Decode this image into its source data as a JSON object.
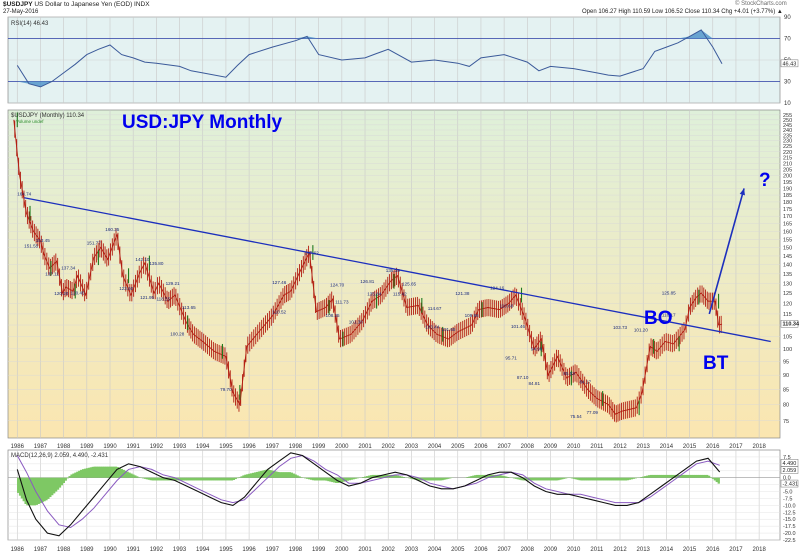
{
  "header": {
    "symbol": "$USDJPY",
    "description": "US Dollar to Japanese Yen (EOD) INDX",
    "date": "27-May-2016",
    "ohlc": "Open 106.27  High 110.59  Low 106.52  Close 110.34  Chg +4.01 (+3.77%) ▲",
    "credit": "© StockCharts.com"
  },
  "colors": {
    "price_bg_top": "#dff0da",
    "price_bg_bottom": "#fbe6b0",
    "rsi_bg": "#e4f2f2",
    "bar": "#b21e12",
    "trendline": "#1c2fbd",
    "annotation": "#0000ee"
  },
  "chart_data": [
    {
      "type": "line",
      "name": "RSI panel",
      "legend": "RSI(14) 46.43",
      "ylim": [
        10,
        90
      ],
      "y_ticks": [
        10,
        30,
        50,
        70,
        90
      ],
      "reference_lines": [
        30,
        70
      ],
      "last_value_label": "46.43",
      "x": [
        1986,
        1986.5,
        1987,
        1987.5,
        1988,
        1988.5,
        1989,
        1989.5,
        1990,
        1990.5,
        1991,
        1991.5,
        1992,
        1993,
        1993.5,
        1994,
        1995,
        1995.5,
        1996,
        1997,
        1998,
        1998.5,
        1999,
        2000,
        2001,
        2001.5,
        2002,
        2003,
        2004,
        2005,
        2005.5,
        2006,
        2007,
        2008,
        2008.5,
        2009,
        2010,
        2011,
        2011.5,
        2012,
        2013,
        2013.5,
        2014,
        2014.5,
        2015,
        2015.5,
        2016,
        2016.4
      ],
      "values": [
        45,
        28,
        25,
        30,
        38,
        46,
        55,
        60,
        64,
        55,
        52,
        48,
        47,
        44,
        40,
        38,
        34,
        45,
        55,
        62,
        68,
        72,
        55,
        50,
        52,
        56,
        60,
        48,
        50,
        47,
        44,
        52,
        55,
        48,
        40,
        44,
        42,
        38,
        36,
        35,
        42,
        58,
        62,
        66,
        72,
        78,
        62,
        46.43
      ]
    },
    {
      "type": "line",
      "name": "Price panel",
      "title": "USD:JPY Monthly",
      "legend": "$USDJPY (Monthly) 110.34",
      "legend_sub": "Volume undef",
      "scale": "log",
      "ylim": [
        70,
        260
      ],
      "y_ticks": [
        75,
        80,
        85,
        90,
        95,
        100,
        105,
        110,
        115,
        120,
        125,
        130,
        135,
        140,
        145,
        150,
        155,
        160,
        165,
        170,
        175,
        180,
        185,
        190,
        195,
        200,
        205,
        210,
        215,
        220,
        225,
        230,
        235,
        240,
        245,
        250,
        255
      ],
      "last_value_label": "110.34",
      "x_ticks": [
        "1986",
        "1987",
        "1988",
        "1989",
        "1990",
        "1991",
        "1992",
        "1993",
        "1994",
        "1995",
        "1996",
        "1997",
        "1998",
        "1999",
        "2000",
        "2001",
        "2002",
        "2003",
        "2004",
        "2005",
        "2006",
        "2007",
        "2008",
        "2009",
        "2010",
        "2011",
        "2012",
        "2013",
        "2014",
        "2015",
        "2016",
        "2017",
        "2018"
      ],
      "x": [
        1985.85,
        1986.1,
        1986.4,
        1986.7,
        1987.0,
        1987.15,
        1987.4,
        1987.7,
        1987.95,
        1988.1,
        1988.4,
        1988.6,
        1988.95,
        1989.3,
        1989.6,
        1989.9,
        1990.3,
        1990.55,
        1990.9,
        1991.3,
        1991.5,
        1991.9,
        1992.1,
        1992.5,
        1992.8,
        1993.3,
        1993.6,
        1994.0,
        1994.5,
        1995.0,
        1995.3,
        1995.6,
        1995.9,
        1996.5,
        1997.0,
        1997.5,
        1997.8,
        1998.3,
        1998.6,
        1998.9,
        1999.3,
        1999.6,
        1999.9,
        2000.4,
        2000.9,
        2001.3,
        2001.7,
        2002.1,
        2002.4,
        2002.8,
        2003.3,
        2003.7,
        2004.1,
        2004.6,
        2005.0,
        2005.6,
        2005.9,
        2006.3,
        2006.8,
        2007.2,
        2007.5,
        2007.9,
        2008.3,
        2008.6,
        2008.9,
        2009.3,
        2009.7,
        2010.1,
        2010.6,
        2011.0,
        2011.5,
        2011.8,
        2012.1,
        2012.7,
        2012.95,
        2013.3,
        2013.6,
        2013.95,
        2014.3,
        2014.8,
        2015.0,
        2015.3,
        2015.5,
        2015.8,
        2016.1,
        2016.25,
        2016.4
      ],
      "values": [
        250,
        200,
        172,
        160,
        154,
        146,
        138,
        142,
        125,
        128,
        126,
        134,
        124,
        144,
        150,
        143,
        158,
        134,
        124,
        136,
        141,
        125,
        130,
        121,
        124,
        111,
        106,
        103,
        99,
        97,
        84,
        80,
        101,
        108,
        114,
        124,
        126,
        139,
        147,
        116,
        118,
        122,
        104,
        106,
        112,
        121,
        124,
        131,
        134,
        118,
        119,
        110,
        106,
        104,
        107,
        110,
        117,
        118,
        117,
        120,
        124,
        113,
        100,
        104,
        90,
        97,
        89,
        91,
        85,
        82,
        80,
        77,
        78,
        79,
        84,
        101,
        99,
        103,
        102,
        108,
        118,
        123,
        125,
        121,
        121,
        110,
        110.34
      ],
      "bars": [
        [
          1985.85,
          1986.15
        ],
        [
          1986.25,
          1986.85
        ],
        [
          1987.1,
          1987.8
        ],
        [
          1988.2,
          1988.8
        ],
        [
          1989.0,
          1990.0
        ],
        [
          1990.5,
          1991.1
        ],
        [
          1991.5,
          1991.9
        ],
        [
          1993.2,
          1993.5
        ],
        [
          1994.6,
          1995.1
        ],
        [
          1995.5,
          1995.7
        ],
        [
          1998.6,
          1998.9
        ],
        [
          1999.3,
          1999.6
        ],
        [
          1999.9,
          2000.2
        ],
        [
          2001.3,
          2001.7
        ],
        [
          2002.1,
          2002.4
        ],
        [
          2003.3,
          2003.6
        ],
        [
          2004.1,
          2004.6
        ],
        [
          2005.9,
          2006.2
        ],
        [
          2007.5,
          2008.0
        ],
        [
          2008.3,
          2008.9
        ],
        [
          2009.7,
          2010.1
        ],
        [
          2011.0,
          2011.5
        ],
        [
          2012.7,
          2012.95
        ],
        [
          2013.3,
          2013.6
        ],
        [
          2014.3,
          2014.8
        ],
        [
          2015.3,
          2015.5
        ],
        [
          2016.1,
          2016.4
        ]
      ],
      "point_labels": [
        {
          "x": 1986.3,
          "y": 184.74,
          "text": "164.74"
        },
        {
          "x": 1987.1,
          "y": 153.45,
          "text": "153.45"
        },
        {
          "x": 1986.6,
          "y": 150.1,
          "text": "151.55"
        },
        {
          "x": 1988.2,
          "y": 137.34,
          "text": "137.34"
        },
        {
          "x": 1987.5,
          "y": 134.2,
          "text": "137.11"
        },
        {
          "x": 1987.9,
          "y": 124.1,
          "text": "120.20"
        },
        {
          "x": 1988.6,
          "y": 124.3,
          "text": "120.45"
        },
        {
          "x": 1989.3,
          "y": 151.77,
          "text": "151.77"
        },
        {
          "x": 1990.1,
          "y": 160.35,
          "text": "160.35"
        },
        {
          "x": 1991.4,
          "y": 142.1,
          "text": "142.10"
        },
        {
          "x": 1990.7,
          "y": 126.5,
          "text": "123.60"
        },
        {
          "x": 1992.0,
          "y": 139.8,
          "text": "135.80"
        },
        {
          "x": 1991.6,
          "y": 121.95,
          "text": "121.95"
        },
        {
          "x": 1992.7,
          "y": 129.21,
          "text": "129.21"
        },
        {
          "x": 1992.3,
          "y": 121.3,
          "text": "118.55"
        },
        {
          "x": 1993.4,
          "y": 117.3,
          "text": "113.65"
        },
        {
          "x": 1992.9,
          "y": 105.5,
          "text": "100.28"
        },
        {
          "x": 1995.0,
          "y": 84.5,
          "text": "79.70"
        },
        {
          "x": 1997.3,
          "y": 129.5,
          "text": "127.46"
        },
        {
          "x": 1997.3,
          "y": 115.1,
          "text": "110.52"
        },
        {
          "x": 1998.7,
          "y": 145.9,
          "text": "147.62"
        },
        {
          "x": 1999.8,
          "y": 128.3,
          "text": "124.70"
        },
        {
          "x": 1999.6,
          "y": 113.5,
          "text": "108.25"
        },
        {
          "x": 2000.0,
          "y": 119.8,
          "text": "111.73"
        },
        {
          "x": 2000.6,
          "y": 110.6,
          "text": "101.38"
        },
        {
          "x": 2001.1,
          "y": 130.1,
          "text": "126.81"
        },
        {
          "x": 2001.4,
          "y": 123.7,
          "text": "135.84"
        },
        {
          "x": 2002.2,
          "y": 136.1,
          "text": "135.15"
        },
        {
          "x": 2002.5,
          "y": 123.7,
          "text": "115.42"
        },
        {
          "x": 2002.9,
          "y": 128.8,
          "text": "125.65"
        },
        {
          "x": 2004.0,
          "y": 116.8,
          "text": "114.67"
        },
        {
          "x": 2003.9,
          "y": 108.5,
          "text": "103.44"
        },
        {
          "x": 2004.6,
          "y": 107.5,
          "text": "101.65"
        },
        {
          "x": 2005.2,
          "y": 124.1,
          "text": "121.38"
        },
        {
          "x": 2005.6,
          "y": 113.5,
          "text": "109.96"
        },
        {
          "x": 2006.7,
          "y": 126.8,
          "text": "124.16"
        },
        {
          "x": 2007.1,
          "y": 118.1,
          "text": "110.66"
        },
        {
          "x": 2007.6,
          "y": 108.8,
          "text": "101.46"
        },
        {
          "x": 2007.3,
          "y": 95.9,
          "text": "95.71"
        },
        {
          "x": 2008.4,
          "y": 99.3,
          "text": "94.98"
        },
        {
          "x": 2007.8,
          "y": 88.6,
          "text": "87.10"
        },
        {
          "x": 2008.3,
          "y": 86.5,
          "text": "84.81"
        },
        {
          "x": 2009.8,
          "y": 90.1,
          "text": "85.53"
        },
        {
          "x": 2010.5,
          "y": 87.1,
          "text": "84.17"
        },
        {
          "x": 2010.1,
          "y": 75.9,
          "text": "75.54"
        },
        {
          "x": 2010.8,
          "y": 77.0,
          "text": "77.09"
        },
        {
          "x": 2012.0,
          "y": 108.3,
          "text": "103.73"
        },
        {
          "x": 2012.9,
          "y": 107.1,
          "text": "101.20"
        },
        {
          "x": 2014.1,
          "y": 124.2,
          "text": "125.85"
        },
        {
          "x": 2014.1,
          "y": 113.8,
          "text": "116.17"
        }
      ],
      "trendline": {
        "x": [
          1986.3,
          2018.5
        ],
        "y": [
          183,
          103
        ]
      },
      "annotations": [
        {
          "text": "BO",
          "x": 2013.0,
          "y": 114
        },
        {
          "text": "BT",
          "x": 2014.6,
          "y": 98.5
        },
        {
          "text": "?",
          "x": 2017.2,
          "y": 198
        }
      ],
      "projection_arrow": {
        "x": [
          2015.85,
          2017.35
        ],
        "y": [
          115,
          190
        ]
      }
    },
    {
      "type": "line",
      "name": "MACD panel",
      "legend": "MACD(12,26,9) 2.059, 4.490, -2.431",
      "ylim": [
        -22.5,
        10
      ],
      "y_ticks": [
        7.5,
        5.0,
        2.5,
        0.0,
        -2.5,
        -5.0,
        -7.5,
        -10.0,
        -12.5,
        -15.0,
        -17.5,
        -20.0,
        -22.5
      ],
      "value_labels": [
        "4.490",
        "2.059",
        "-2.431"
      ],
      "x": [
        1986.0,
        1986.4,
        1986.8,
        1987.3,
        1987.8,
        1988.3,
        1988.8,
        1989.3,
        1989.8,
        1990.3,
        1990.8,
        1991.3,
        1991.8,
        1992.3,
        1992.8,
        1993.3,
        1993.8,
        1994.3,
        1994.8,
        1995.3,
        1995.8,
        1996.3,
        1996.8,
        1997.3,
        1997.8,
        1998.3,
        1998.8,
        1999.3,
        1999.8,
        2000.3,
        2000.8,
        2001.3,
        2001.8,
        2002.3,
        2002.8,
        2003.3,
        2003.8,
        2004.3,
        2004.8,
        2005.3,
        2005.8,
        2006.3,
        2006.8,
        2007.3,
        2007.8,
        2008.3,
        2008.8,
        2009.3,
        2009.8,
        2010.3,
        2010.8,
        2011.3,
        2011.8,
        2012.3,
        2012.8,
        2013.3,
        2013.8,
        2014.3,
        2014.8,
        2015.3,
        2015.8,
        2016.3
      ],
      "series": [
        {
          "name": "MACD",
          "values": [
            3,
            -8,
            -15,
            -20,
            -21,
            -17,
            -12,
            -7,
            -2,
            3,
            5,
            4,
            2,
            0,
            -1,
            -3,
            -5,
            -7,
            -9,
            -10,
            -7,
            -2,
            3,
            6,
            9,
            8,
            5,
            2,
            -1,
            -3,
            -2,
            0,
            1,
            2,
            1,
            -1,
            -3,
            -4,
            -4,
            -3,
            -1,
            1,
            2,
            2,
            0,
            -3,
            -5,
            -6,
            -6,
            -7,
            -8,
            -9,
            -10,
            -10,
            -9,
            -6,
            -3,
            0,
            3,
            6,
            7,
            2.059
          ]
        },
        {
          "name": "Signal",
          "values": [
            8,
            2,
            -5,
            -12,
            -17,
            -18,
            -15,
            -11,
            -6,
            -1,
            3,
            4,
            3,
            1,
            0,
            -2,
            -4,
            -6,
            -8,
            -9,
            -8,
            -4,
            0,
            4,
            7,
            8,
            6,
            3,
            1,
            -2,
            -2,
            -1,
            0,
            1,
            1,
            0,
            -2,
            -3,
            -4,
            -3,
            -2,
            0,
            1,
            2,
            1,
            -2,
            -4,
            -5,
            -6,
            -6,
            -7,
            -8,
            -9,
            -9,
            -9,
            -7,
            -4,
            -1,
            2,
            5,
            6,
            4.49
          ]
        },
        {
          "name": "Histogram",
          "values": [
            -5,
            -10,
            -10,
            -8,
            -4,
            1,
            3,
            4,
            4,
            4,
            2,
            0,
            -1,
            -1,
            -1,
            -1,
            -1,
            -1,
            -1,
            -1,
            1,
            2,
            3,
            2,
            2,
            0,
            -1,
            -1,
            -2,
            -1,
            0,
            1,
            1,
            1,
            0,
            -1,
            -1,
            -1,
            0,
            0,
            1,
            1,
            1,
            0,
            -1,
            -1,
            -1,
            -1,
            0,
            -1,
            -1,
            -1,
            -1,
            -1,
            0,
            1,
            1,
            1,
            1,
            1,
            1,
            -2.431
          ]
        }
      ]
    }
  ]
}
